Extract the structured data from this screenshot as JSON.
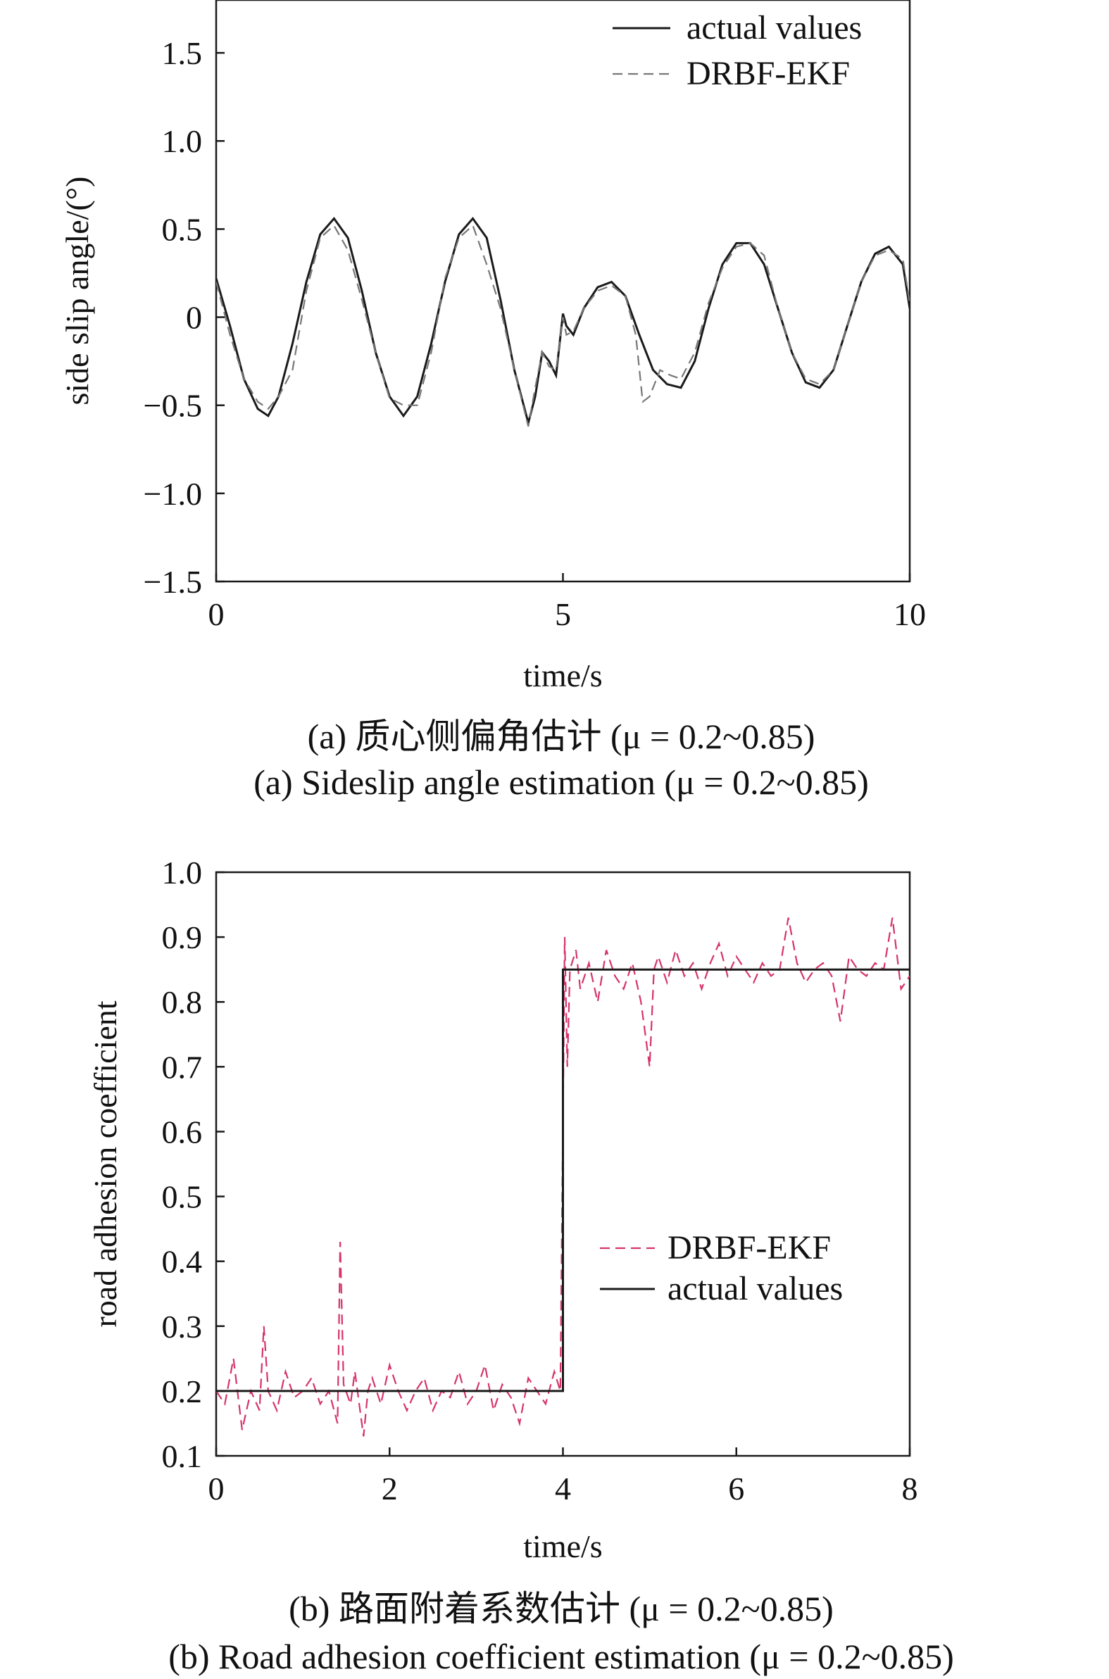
{
  "figure": {
    "caption_a_cn": "(a) 质心侧偏角估计 (μ = 0.2~0.85)",
    "caption_a_en": "(a) Sideslip angle estimation (μ = 0.2~0.85)",
    "caption_b_cn": "(b) 路面附着系数估计 (μ = 0.2~0.85)",
    "caption_b_en": "(b) Road adhesion coefficient estimation (μ = 0.2~0.85)"
  },
  "colors": {
    "actual": "#1a1a1a",
    "estimate_a": "#777777",
    "estimate_b": "#d6336c",
    "axis": "#1a1a1a"
  },
  "chart_data": [
    {
      "type": "line",
      "xlabel": "time/s",
      "ylabel": "side slip angle/(°)",
      "xlim": [
        0,
        10
      ],
      "ylim": [
        -1.5,
        1.8
      ],
      "xticks": [
        0,
        5,
        10
      ],
      "xtick_labels": [
        "0",
        "5",
        "10"
      ],
      "yticks": [
        -1.5,
        -1.0,
        -0.5,
        0,
        0.5,
        1.0,
        1.5
      ],
      "ytick_labels": [
        "−1.5",
        "−1.0",
        "−0.5",
        "0",
        "0.5",
        "1.0",
        "1.5"
      ],
      "grid": false,
      "legend_position": "top-right",
      "series": [
        {
          "name": "actual values",
          "style": "solid",
          "x": [
            0,
            0.2,
            0.4,
            0.6,
            0.75,
            0.9,
            1.1,
            1.3,
            1.5,
            1.7,
            1.9,
            2.1,
            2.3,
            2.5,
            2.7,
            2.9,
            3.1,
            3.3,
            3.5,
            3.7,
            3.9,
            4.1,
            4.3,
            4.5,
            4.6,
            4.7,
            4.8,
            4.9,
            5.0,
            5.05,
            5.15,
            5.3,
            5.5,
            5.7,
            5.9,
            6.1,
            6.3,
            6.5,
            6.7,
            6.9,
            7.1,
            7.3,
            7.5,
            7.7,
            7.9,
            8.1,
            8.3,
            8.5,
            8.7,
            8.9,
            9.1,
            9.3,
            9.5,
            9.7,
            9.9,
            10.0
          ],
          "y": [
            0.22,
            -0.05,
            -0.35,
            -0.52,
            -0.56,
            -0.45,
            -0.15,
            0.2,
            0.47,
            0.56,
            0.45,
            0.15,
            -0.2,
            -0.45,
            -0.56,
            -0.45,
            -0.15,
            0.2,
            0.47,
            0.56,
            0.45,
            0.1,
            -0.3,
            -0.6,
            -0.45,
            -0.2,
            -0.25,
            -0.33,
            0.02,
            -0.05,
            -0.1,
            0.05,
            0.17,
            0.2,
            0.12,
            -0.1,
            -0.3,
            -0.38,
            -0.4,
            -0.25,
            0.05,
            0.3,
            0.42,
            0.42,
            0.3,
            0.05,
            -0.2,
            -0.37,
            -0.4,
            -0.3,
            -0.05,
            0.2,
            0.36,
            0.4,
            0.3,
            0.05
          ]
        },
        {
          "name": "DRBF-EKF",
          "style": "dashed",
          "x": [
            0,
            0.2,
            0.4,
            0.6,
            0.75,
            0.9,
            1.1,
            1.3,
            1.5,
            1.7,
            1.9,
            2.1,
            2.3,
            2.5,
            2.7,
            2.9,
            3.1,
            3.3,
            3.5,
            3.7,
            3.9,
            4.1,
            4.3,
            4.5,
            4.6,
            4.7,
            4.8,
            4.9,
            5.0,
            5.05,
            5.15,
            5.3,
            5.5,
            5.7,
            5.9,
            6.05,
            6.15,
            6.25,
            6.4,
            6.55,
            6.7,
            6.9,
            7.1,
            7.3,
            7.5,
            7.7,
            7.9,
            8.1,
            8.3,
            8.5,
            8.7,
            8.9,
            9.1,
            9.3,
            9.5,
            9.7,
            9.9,
            10.0
          ],
          "y": [
            0.2,
            -0.1,
            -0.35,
            -0.48,
            -0.52,
            -0.45,
            -0.3,
            0.15,
            0.45,
            0.52,
            0.38,
            0.1,
            -0.2,
            -0.46,
            -0.5,
            -0.5,
            -0.2,
            0.22,
            0.45,
            0.52,
            0.3,
            0.05,
            -0.3,
            -0.62,
            -0.4,
            -0.2,
            -0.28,
            -0.3,
            0.0,
            -0.1,
            -0.08,
            0.05,
            0.15,
            0.18,
            0.12,
            -0.1,
            -0.48,
            -0.45,
            -0.3,
            -0.33,
            -0.35,
            -0.2,
            0.08,
            0.28,
            0.4,
            0.42,
            0.35,
            0.05,
            -0.2,
            -0.35,
            -0.38,
            -0.3,
            -0.05,
            0.2,
            0.35,
            0.38,
            0.33,
            0.08
          ]
        }
      ]
    },
    {
      "type": "line",
      "xlabel": "time/s",
      "ylabel": "road adhesion coefficient",
      "xlim": [
        0,
        8
      ],
      "ylim": [
        0.1,
        1.0
      ],
      "xticks": [
        0,
        2,
        4,
        6,
        8
      ],
      "xtick_labels": [
        "0",
        "2",
        "4",
        "6",
        "8"
      ],
      "yticks": [
        0.1,
        0.2,
        0.3,
        0.4,
        0.5,
        0.6,
        0.7,
        0.8,
        0.9,
        1.0
      ],
      "ytick_labels": [
        "0.1",
        "0.2",
        "0.3",
        "0.4",
        "0.5",
        "0.6",
        "0.7",
        "0.8",
        "0.9",
        "1.0"
      ],
      "grid": false,
      "legend_position": "center-right",
      "series": [
        {
          "name": "DRBF-EKF",
          "style": "dashed",
          "x": [
            0.0,
            0.1,
            0.2,
            0.3,
            0.4,
            0.5,
            0.55,
            0.6,
            0.7,
            0.8,
            0.9,
            1.0,
            1.1,
            1.2,
            1.3,
            1.4,
            1.43,
            1.47,
            1.55,
            1.6,
            1.7,
            1.75,
            1.8,
            1.9,
            2.0,
            2.1,
            2.2,
            2.3,
            2.4,
            2.5,
            2.6,
            2.7,
            2.8,
            2.9,
            3.0,
            3.1,
            3.2,
            3.3,
            3.4,
            3.5,
            3.6,
            3.7,
            3.8,
            3.9,
            3.97,
            4.02,
            4.05,
            4.08,
            4.15,
            4.2,
            4.3,
            4.4,
            4.5,
            4.6,
            4.7,
            4.8,
            4.9,
            5.0,
            5.05,
            5.1,
            5.2,
            5.3,
            5.4,
            5.5,
            5.6,
            5.7,
            5.8,
            5.9,
            6.0,
            6.1,
            6.2,
            6.3,
            6.4,
            6.5,
            6.6,
            6.7,
            6.8,
            6.9,
            7.0,
            7.1,
            7.2,
            7.3,
            7.4,
            7.5,
            7.6,
            7.7,
            7.8,
            7.9,
            8.0
          ],
          "y": [
            0.2,
            0.18,
            0.25,
            0.14,
            0.2,
            0.17,
            0.3,
            0.2,
            0.17,
            0.23,
            0.19,
            0.2,
            0.22,
            0.18,
            0.2,
            0.15,
            0.43,
            0.21,
            0.18,
            0.23,
            0.13,
            0.2,
            0.22,
            0.18,
            0.24,
            0.2,
            0.17,
            0.2,
            0.22,
            0.17,
            0.2,
            0.19,
            0.23,
            0.18,
            0.2,
            0.24,
            0.17,
            0.21,
            0.19,
            0.15,
            0.22,
            0.2,
            0.18,
            0.23,
            0.2,
            0.9,
            0.7,
            0.85,
            0.88,
            0.82,
            0.86,
            0.8,
            0.88,
            0.84,
            0.82,
            0.86,
            0.8,
            0.7,
            0.85,
            0.87,
            0.83,
            0.88,
            0.84,
            0.86,
            0.82,
            0.86,
            0.89,
            0.84,
            0.87,
            0.85,
            0.83,
            0.86,
            0.84,
            0.85,
            0.93,
            0.86,
            0.83,
            0.85,
            0.86,
            0.84,
            0.77,
            0.87,
            0.85,
            0.84,
            0.86,
            0.85,
            0.93,
            0.82,
            0.84
          ]
        },
        {
          "name": "actual values",
          "style": "solid",
          "x": [
            0,
            4.0,
            4.0,
            8.0
          ],
          "y": [
            0.2,
            0.2,
            0.85,
            0.85
          ]
        }
      ]
    }
  ]
}
